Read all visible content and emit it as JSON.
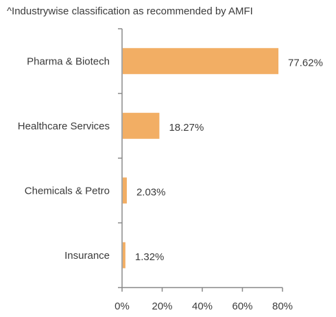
{
  "note": "^Industrywise classification as recommended by AMFI",
  "colors": {
    "bar": "#f2ae64",
    "axis": "#888888"
  },
  "chart_data": {
    "type": "bar",
    "orientation": "horizontal",
    "categories": [
      "Pharma & Biotech",
      "Healthcare Services",
      "Chemicals & Petro",
      "Insurance"
    ],
    "values": [
      77.62,
      18.27,
      2.03,
      1.32
    ],
    "value_labels": [
      "77.62%",
      "18.27%",
      "2.03%",
      "1.32%"
    ],
    "xlim": [
      0,
      80
    ],
    "xticks": [
      0,
      20,
      40,
      60,
      80
    ],
    "xtick_labels": [
      "0%",
      "20%",
      "40%",
      "60%",
      "80%"
    ],
    "grid": false,
    "legend": "none"
  }
}
